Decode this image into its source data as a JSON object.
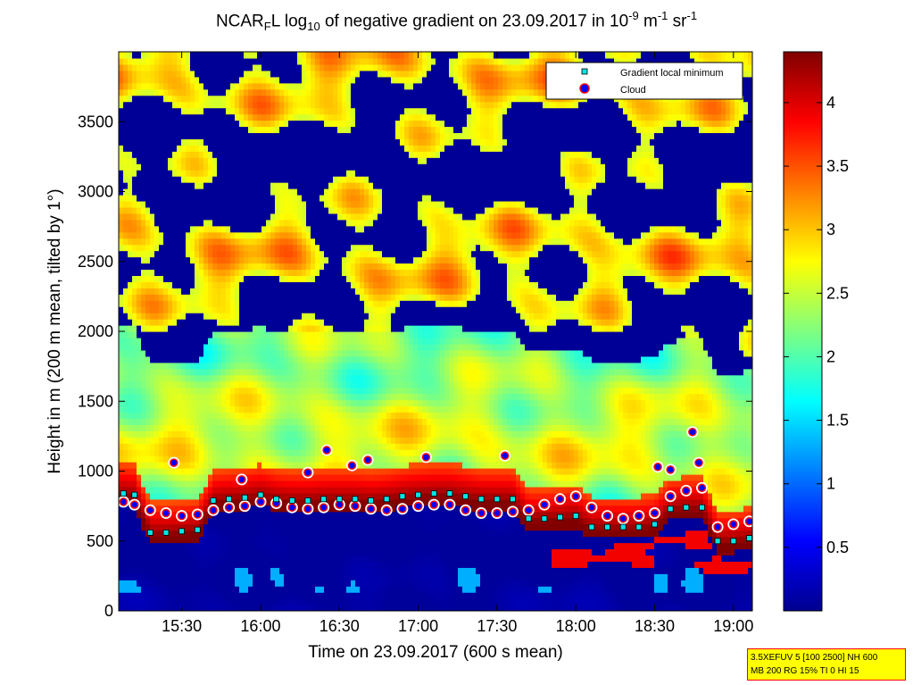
{
  "chart_data": {
    "type": "heatmap",
    "title": {
      "base": "NCAR",
      "sub1": "F",
      "mid1": "L log",
      "sub2": "10",
      "mid2": " of negative gradient on 23.09.2017 in 10",
      "sup1": "-9",
      "mid3": " m",
      "sup2": "-1",
      "mid4": " sr",
      "sup3": "-1"
    },
    "xlabel": "Time on 23.09.2017 (600 s mean)",
    "ylabel": "Height in m (200 m mean, tilted by 1°)",
    "x_ticks": [
      "15:30",
      "16:00",
      "16:30",
      "17:00",
      "17:30",
      "18:00",
      "18:30",
      "19:00"
    ],
    "x_tick_hours": [
      15.5,
      16.0,
      16.5,
      17.0,
      17.5,
      18.0,
      18.5,
      19.0
    ],
    "xlim_hours": [
      15.1,
      19.12
    ],
    "y_ticks": [
      0,
      500,
      1000,
      1500,
      2000,
      2500,
      3000,
      3500
    ],
    "ylim": [
      0,
      4000
    ],
    "colorbar": {
      "colormap": "jet",
      "range": [
        0,
        4.4
      ],
      "ticks": [
        0.5,
        1,
        1.5,
        2,
        2.5,
        3,
        3.5,
        4
      ],
      "tick_labels": [
        "0.5",
        "1",
        "1.5",
        "2",
        "2.5",
        "3",
        "3.5",
        "4"
      ]
    },
    "legend": {
      "position": "top-right",
      "entries": [
        {
          "label": "Gradient local minimum",
          "marker": "square",
          "color": "#00e5e5"
        },
        {
          "label": "Cloud",
          "marker": "circle",
          "color": "#0000ff",
          "edge": "#ff0000"
        }
      ]
    },
    "series": [
      {
        "name": "Gradient local minimum",
        "x_hours": [
          15.13,
          15.2,
          15.3,
          15.4,
          15.5,
          15.6,
          15.7,
          15.8,
          15.9,
          16.0,
          16.1,
          16.2,
          16.3,
          16.4,
          16.5,
          16.6,
          16.7,
          16.8,
          16.9,
          17.0,
          17.1,
          17.2,
          17.3,
          17.4,
          17.5,
          17.6,
          17.7,
          17.8,
          17.9,
          18.0,
          18.1,
          18.2,
          18.3,
          18.4,
          18.5,
          18.6,
          18.7,
          18.8,
          18.9,
          19.0,
          19.1
        ],
        "y": [
          840,
          830,
          560,
          560,
          570,
          580,
          790,
          800,
          810,
          830,
          800,
          790,
          790,
          800,
          800,
          800,
          790,
          800,
          820,
          830,
          840,
          840,
          820,
          800,
          800,
          800,
          660,
          660,
          670,
          680,
          600,
          600,
          600,
          600,
          620,
          730,
          740,
          740,
          500,
          500,
          520
        ]
      },
      {
        "name": "Cloud",
        "x_hours": [
          15.13,
          15.2,
          15.3,
          15.4,
          15.5,
          15.6,
          15.7,
          15.8,
          15.9,
          16.0,
          16.1,
          16.2,
          16.3,
          16.4,
          16.5,
          16.6,
          16.7,
          16.8,
          16.9,
          17.0,
          17.1,
          17.2,
          17.3,
          17.4,
          17.5,
          17.6,
          17.7,
          17.8,
          17.9,
          18.0,
          18.1,
          18.2,
          18.3,
          18.4,
          18.5,
          18.6,
          18.7,
          18.8,
          18.9,
          19.0,
          19.1
        ],
        "y": [
          780,
          760,
          720,
          700,
          680,
          690,
          720,
          740,
          750,
          780,
          770,
          740,
          730,
          740,
          760,
          750,
          730,
          720,
          730,
          750,
          760,
          760,
          720,
          700,
          700,
          710,
          720,
          760,
          800,
          820,
          740,
          680,
          660,
          680,
          700,
          820,
          860,
          880,
          600,
          620,
          640
        ]
      },
      {
        "name": "Cloud (upper)",
        "x_hours": [
          15.45,
          15.88,
          16.3,
          16.42,
          16.58,
          16.68,
          17.05,
          17.55,
          18.52,
          18.6,
          18.74,
          18.78
        ],
        "y": [
          1060,
          940,
          990,
          1150,
          1040,
          1080,
          1100,
          1110,
          1030,
          1010,
          1280,
          1060
        ]
      }
    ]
  },
  "info_box": {
    "line1": "3.5XEFUV 5 [100 2500] NH 600",
    "line2": "MB 200 RG 15% TI 0 HI 15"
  }
}
